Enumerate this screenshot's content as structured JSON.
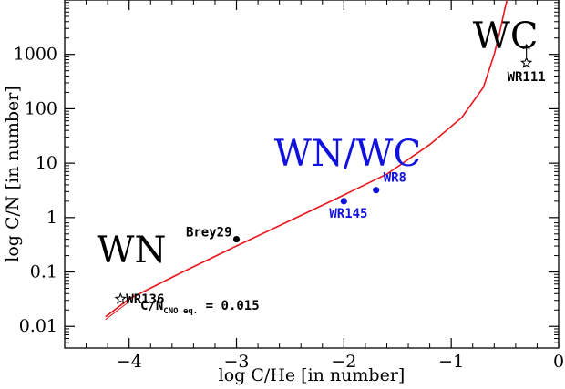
{
  "chart_data": {
    "type": "scatter",
    "title": "",
    "xlabel": "log C/He [in number]",
    "ylabel": "log C/N [in number]",
    "xlim": [
      -4.6,
      0
    ],
    "ylim": [
      0.004,
      10000
    ],
    "y_scale": "log",
    "x_ticks": [
      {
        "value": -4,
        "label": "−4"
      },
      {
        "value": -3,
        "label": "−3"
      },
      {
        "value": -2,
        "label": "−2"
      },
      {
        "value": -1,
        "label": "−1"
      },
      {
        "value": 0,
        "label": "0"
      }
    ],
    "y_ticks": [
      {
        "value": 0.01,
        "label": "0.01"
      },
      {
        "value": 0.1,
        "label": "0.1"
      },
      {
        "value": 1,
        "label": "1"
      },
      {
        "value": 10,
        "label": "10"
      },
      {
        "value": 100,
        "label": "100"
      },
      {
        "value": 1000,
        "label": "1000"
      }
    ],
    "track": {
      "color": "#e8161c",
      "x": [
        -4.22,
        -4.0,
        -3.5,
        -3.0,
        -2.5,
        -2.0,
        -1.6,
        -1.2,
        -0.9,
        -0.7,
        -0.6,
        -0.55,
        -0.5,
        -0.47
      ],
      "y": [
        0.015,
        0.032,
        0.1,
        0.3,
        0.88,
        2.6,
        6.3,
        22,
        70,
        250,
        1000,
        2500,
        7000,
        12000
      ]
    },
    "points": [
      {
        "label": "WR8",
        "x": -1.7,
        "y": 3.2,
        "marker": "dot",
        "color": "#1010e0"
      },
      {
        "label": "WR145",
        "x": -2.0,
        "y": 2.0,
        "marker": "dot",
        "color": "#1010e0"
      },
      {
        "label": "Brey29",
        "x": -3.0,
        "y": 0.4,
        "marker": "dot",
        "color": "#000000"
      },
      {
        "label": "WR136",
        "x": -4.08,
        "y": 0.032,
        "marker": "star",
        "color": "#000000"
      },
      {
        "label": "WR111",
        "x": -0.3,
        "y": 700,
        "marker": "star-lower-limit",
        "color": "#000000"
      }
    ],
    "regions": [
      {
        "label": "WN",
        "x": -4.3,
        "y": 0.15,
        "color": "#000000"
      },
      {
        "label": "WN/WC",
        "x": -2.65,
        "y": 9,
        "color": "#1010e0"
      },
      {
        "label": "WC",
        "x": -0.8,
        "y": 1300,
        "color": "#000000"
      }
    ],
    "annotation": {
      "prefix": "C/N",
      "subscript": "CNO eq.",
      "suffix": " = 0.015"
    },
    "grid": false,
    "legend": "none"
  }
}
